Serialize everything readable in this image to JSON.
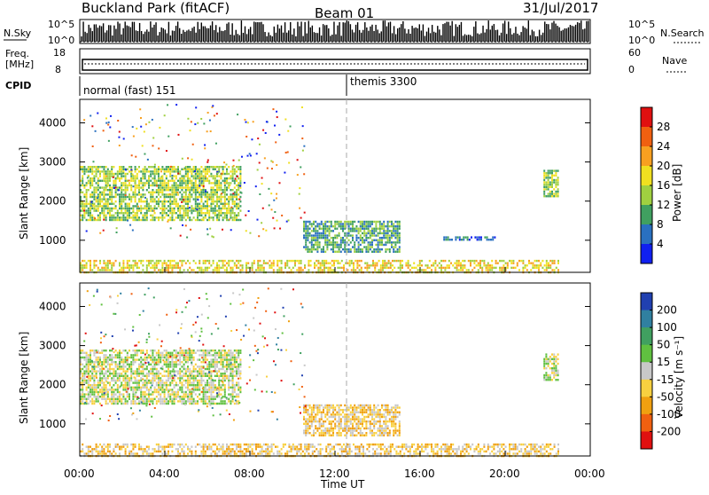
{
  "header": {
    "station": "Buckland Park (fitACF)",
    "beam": "Beam 01",
    "date": "31/Jul/2017"
  },
  "summary": {
    "nsky_label": "N.Sky",
    "nsearch_label": "N.Search",
    "nsky_ticks": [
      "10^5",
      "10^0"
    ],
    "nsearch_ticks": [
      "10^5",
      "10^0"
    ],
    "freq_label": "Freq.",
    "freq_unit": "[MHz]",
    "freq_ticks": [
      "18",
      "8"
    ],
    "nave_label": "Nave",
    "nave_ticks": [
      "60",
      "0"
    ],
    "cpid_label": "CPID",
    "cpid_segments": [
      {
        "label": "normal (fast) 151",
        "start_hour": 0
      },
      {
        "label": "themis 3300",
        "start_hour": 12.0
      }
    ]
  },
  "panels": {
    "power": {
      "ylabel": "Slant Range [km]",
      "cbar_label": "Power [dB]",
      "cbar_ticks": [
        "28",
        "24",
        "20",
        "16",
        "12",
        "8",
        "4"
      ],
      "cbar_colors": [
        "#e01010",
        "#f06010",
        "#f8a020",
        "#f0e020",
        "#a0d040",
        "#40a060",
        "#2a70c0",
        "#1020f0"
      ]
    },
    "velocity": {
      "ylabel": "Slant Range [km]",
      "cbar_label": "Velocity [m s⁻¹]",
      "cbar_ticks": [
        "200",
        "100",
        "50",
        "15",
        "-15",
        "-50",
        "-100",
        "-200"
      ],
      "cbar_colors": [
        "#2040b0",
        "#3080a0",
        "#40a060",
        "#60c040",
        "#c8c8c8",
        "#f8d040",
        "#f0a010",
        "#f06010",
        "#e01010"
      ]
    }
  },
  "xaxis": {
    "label": "Time UT",
    "ticks": [
      "00:00",
      "04:00",
      "08:00",
      "12:00",
      "16:00",
      "20:00",
      "00:00"
    ]
  },
  "chart_data": [
    {
      "type": "heatmap",
      "name_ref": "power",
      "x_range_hours": [
        0,
        24
      ],
      "ylim_km": [
        180,
        4600
      ],
      "yticks": [
        1000,
        2000,
        3000,
        4000
      ],
      "regions": [
        {
          "t0": 0.0,
          "t1": 7.6,
          "r0": 1500,
          "r1": 2900,
          "level": "16-20 dB"
        },
        {
          "t0": 0.0,
          "t1": 22.5,
          "r0": 180,
          "r1": 500,
          "level": "12-28 dB"
        },
        {
          "t0": 10.5,
          "t1": 15.0,
          "r0": 700,
          "r1": 1500,
          "level": "8-16 dB"
        },
        {
          "t0": 17.0,
          "t1": 19.5,
          "r0": 1000,
          "r1": 1100,
          "level": "8-12 dB"
        },
        {
          "t0": 21.8,
          "t1": 22.5,
          "r0": 2100,
          "r1": 2800,
          "level": "12-20 dB"
        }
      ]
    },
    {
      "type": "heatmap",
      "name_ref": "velocity",
      "x_range_hours": [
        0,
        24
      ],
      "ylim_km": [
        180,
        4600
      ],
      "yticks": [
        1000,
        2000,
        3000,
        4000
      ],
      "regions": [
        {
          "t0": 0.0,
          "t1": 7.6,
          "r0": 1500,
          "r1": 2900,
          "level": "-15..15 m/s"
        },
        {
          "t0": 0.0,
          "t1": 22.5,
          "r0": 180,
          "r1": 500,
          "level": "-50..-15 m/s"
        },
        {
          "t0": 10.5,
          "t1": 15.0,
          "r0": 700,
          "r1": 1500,
          "level": "-50..15 m/s"
        },
        {
          "t0": 21.8,
          "t1": 22.5,
          "r0": 2100,
          "r1": 2800,
          "level": "-15..15 m/s"
        }
      ]
    }
  ]
}
